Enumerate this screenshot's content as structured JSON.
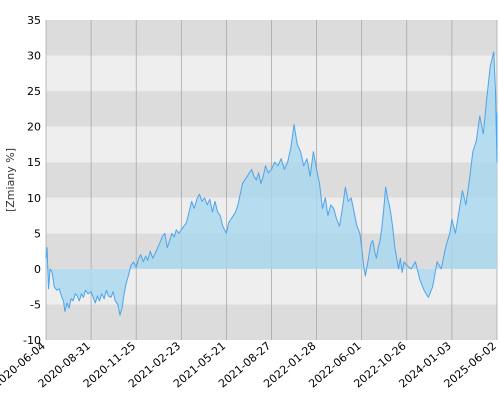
{
  "chart_data": {
    "type": "area",
    "title": "",
    "xlabel": "",
    "ylabel": "[Zmiany %]",
    "ylim": [
      -10,
      35
    ],
    "y_ticks": [
      "-10",
      "-5",
      "0",
      "5",
      "10",
      "15",
      "20",
      "25",
      "30",
      "35"
    ],
    "x_ticks": [
      "2020-06-04",
      "2020-08-31",
      "2020-11-25",
      "2021-02-23",
      "2021-05-21",
      "2021-08-27",
      "2022-01-28",
      "2022-06-01",
      "2022-10-26",
      "2024-01-03",
      "2025-06-02"
    ],
    "grid": true,
    "legend": "none",
    "colors": {
      "line": "#4da3ec",
      "fill": "#a8d8ef",
      "band_dark": "#dcdcdc",
      "band_light": "#eeeeee",
      "grid": "#a0a0a0"
    },
    "series": [
      {
        "points": [
          [
            "2020-06-04",
            1.5
          ],
          [
            "2020-06-06",
            3.0
          ],
          [
            "2020-06-09",
            -2.8
          ],
          [
            "2020-06-12",
            0.0
          ],
          [
            "2020-06-16",
            -0.5
          ],
          [
            "2020-06-20",
            -2.5
          ],
          [
            "2020-06-25",
            -3.0
          ],
          [
            "2020-06-30",
            -2.8
          ],
          [
            "2020-07-04",
            -3.8
          ],
          [
            "2020-07-08",
            -4.5
          ],
          [
            "2020-07-11",
            -6.0
          ],
          [
            "2020-07-15",
            -4.8
          ],
          [
            "2020-07-19",
            -5.5
          ],
          [
            "2020-07-23",
            -4.2
          ],
          [
            "2020-07-27",
            -4.5
          ],
          [
            "2020-07-31",
            -3.5
          ],
          [
            "2020-08-04",
            -3.8
          ],
          [
            "2020-08-08",
            -4.5
          ],
          [
            "2020-08-12",
            -3.5
          ],
          [
            "2020-08-16",
            -4.0
          ],
          [
            "2020-08-20",
            -3.0
          ],
          [
            "2020-08-25",
            -3.5
          ],
          [
            "2020-08-31",
            -3.2
          ],
          [
            "2020-09-04",
            -4.0
          ],
          [
            "2020-09-08",
            -4.8
          ],
          [
            "2020-09-12",
            -3.8
          ],
          [
            "2020-09-16",
            -4.5
          ],
          [
            "2020-09-20",
            -3.5
          ],
          [
            "2020-09-25",
            -4.2
          ],
          [
            "2020-09-29",
            -3.0
          ],
          [
            "2020-10-03",
            -3.8
          ],
          [
            "2020-10-08",
            -4.0
          ],
          [
            "2020-10-12",
            -3.2
          ],
          [
            "2020-10-16",
            -4.5
          ],
          [
            "2020-10-21",
            -5.0
          ],
          [
            "2020-10-25",
            -6.5
          ],
          [
            "2020-10-29",
            -5.5
          ],
          [
            "2020-11-02",
            -3.5
          ],
          [
            "2020-11-06",
            -2.0
          ],
          [
            "2020-11-10",
            -1.0
          ],
          [
            "2020-11-15",
            0.5
          ],
          [
            "2020-11-20",
            1.0
          ],
          [
            "2020-11-25",
            0.2
          ],
          [
            "2020-11-30",
            1.5
          ],
          [
            "2020-12-04",
            2.0
          ],
          [
            "2020-12-09",
            1.0
          ],
          [
            "2020-12-14",
            1.8
          ],
          [
            "2020-12-18",
            1.2
          ],
          [
            "2020-12-23",
            2.5
          ],
          [
            "2020-12-28",
            1.5
          ],
          [
            "2021-01-02",
            2.2
          ],
          [
            "2021-01-07",
            3.0
          ],
          [
            "2021-01-12",
            3.8
          ],
          [
            "2021-01-16",
            4.5
          ],
          [
            "2021-01-21",
            5.0
          ],
          [
            "2021-01-26",
            3.0
          ],
          [
            "2021-01-31",
            4.0
          ],
          [
            "2021-02-04",
            5.0
          ],
          [
            "2021-02-09",
            4.5
          ],
          [
            "2021-02-13",
            5.5
          ],
          [
            "2021-02-18",
            5.0
          ],
          [
            "2021-02-23",
            5.5
          ],
          [
            "2021-02-28",
            6.0
          ],
          [
            "2021-03-05",
            6.5
          ],
          [
            "2021-03-10",
            8.0
          ],
          [
            "2021-03-15",
            9.5
          ],
          [
            "2021-03-20",
            8.5
          ],
          [
            "2021-03-25",
            9.8
          ],
          [
            "2021-03-30",
            10.5
          ],
          [
            "2021-04-04",
            9.5
          ],
          [
            "2021-04-09",
            10.0
          ],
          [
            "2021-04-14",
            9.0
          ],
          [
            "2021-04-19",
            9.8
          ],
          [
            "2021-04-24",
            8.0
          ],
          [
            "2021-04-29",
            9.5
          ],
          [
            "2021-05-04",
            8.0
          ],
          [
            "2021-05-09",
            7.5
          ],
          [
            "2021-05-14",
            6.0
          ],
          [
            "2021-05-21",
            5.0
          ],
          [
            "2021-05-26",
            6.5
          ],
          [
            "2021-05-31",
            7.0
          ],
          [
            "2021-06-05",
            7.5
          ],
          [
            "2021-06-10",
            8.0
          ],
          [
            "2021-06-15",
            9.0
          ],
          [
            "2021-06-20",
            10.5
          ],
          [
            "2021-06-25",
            12.0
          ],
          [
            "2021-06-30",
            12.5
          ],
          [
            "2021-07-05",
            13.0
          ],
          [
            "2021-07-10",
            13.5
          ],
          [
            "2021-07-15",
            14.0
          ],
          [
            "2021-07-20",
            13.0
          ],
          [
            "2021-07-25",
            12.5
          ],
          [
            "2021-07-30",
            13.5
          ],
          [
            "2021-08-04",
            12.0
          ],
          [
            "2021-08-09",
            13.0
          ],
          [
            "2021-08-14",
            14.5
          ],
          [
            "2021-08-20",
            13.5
          ],
          [
            "2021-08-27",
            14.0
          ],
          [
            "2021-09-07",
            15.0
          ],
          [
            "2021-09-18",
            14.5
          ],
          [
            "2021-09-29",
            15.5
          ],
          [
            "2021-10-10",
            14.0
          ],
          [
            "2021-10-21",
            15.0
          ],
          [
            "2021-11-01",
            17.0
          ],
          [
            "2021-11-12",
            20.3
          ],
          [
            "2021-11-23",
            17.5
          ],
          [
            "2021-12-04",
            16.5
          ],
          [
            "2021-12-15",
            14.5
          ],
          [
            "2021-12-26",
            15.5
          ],
          [
            "2022-01-06",
            13.0
          ],
          [
            "2022-01-17",
            16.5
          ],
          [
            "2022-01-28",
            14.0
          ],
          [
            "2022-02-05",
            12.0
          ],
          [
            "2022-02-13",
            8.5
          ],
          [
            "2022-02-21",
            10.0
          ],
          [
            "2022-02-28",
            7.5
          ],
          [
            "2022-03-08",
            9.0
          ],
          [
            "2022-03-16",
            8.5
          ],
          [
            "2022-03-24",
            7.0
          ],
          [
            "2022-04-01",
            6.0
          ],
          [
            "2022-04-09",
            8.5
          ],
          [
            "2022-04-17",
            11.5
          ],
          [
            "2022-04-25",
            9.5
          ],
          [
            "2022-05-03",
            10.0
          ],
          [
            "2022-05-11",
            8.0
          ],
          [
            "2022-05-19",
            6.0
          ],
          [
            "2022-05-27",
            5.0
          ],
          [
            "2022-06-01",
            3.0
          ],
          [
            "2022-06-07",
            0.5
          ],
          [
            "2022-06-13",
            -1.0
          ],
          [
            "2022-06-19",
            0.5
          ],
          [
            "2022-06-25",
            2.0
          ],
          [
            "2022-07-01",
            3.5
          ],
          [
            "2022-07-07",
            4.0
          ],
          [
            "2022-07-13",
            2.5
          ],
          [
            "2022-07-19",
            1.5
          ],
          [
            "2022-07-25",
            3.0
          ],
          [
            "2022-07-31",
            4.0
          ],
          [
            "2022-08-06",
            6.0
          ],
          [
            "2022-08-12",
            8.5
          ],
          [
            "2022-08-18",
            11.5
          ],
          [
            "2022-08-24",
            10.0
          ],
          [
            "2022-08-30",
            9.0
          ],
          [
            "2022-09-05",
            7.5
          ],
          [
            "2022-09-11",
            5.5
          ],
          [
            "2022-09-17",
            3.0
          ],
          [
            "2022-09-23",
            1.5
          ],
          [
            "2022-09-29",
            0.0
          ],
          [
            "2022-10-05",
            1.5
          ],
          [
            "2022-10-11",
            -0.5
          ],
          [
            "2022-10-17",
            1.0
          ],
          [
            "2022-10-26",
            0.5
          ],
          [
            "2022-12-07",
            0.0
          ],
          [
            "2023-01-17",
            1.0
          ],
          [
            "2023-02-28",
            -1.5
          ],
          [
            "2023-04-10",
            -3.0
          ],
          [
            "2023-05-22",
            -4.0
          ],
          [
            "2023-07-02",
            -2.5
          ],
          [
            "2023-08-13",
            1.0
          ],
          [
            "2023-09-23",
            0.0
          ],
          [
            "2023-11-03",
            3.0
          ],
          [
            "2023-12-14",
            5.0
          ],
          [
            "2024-01-03",
            7.0
          ],
          [
            "2024-02-12",
            5.0
          ],
          [
            "2024-03-23",
            8.0
          ],
          [
            "2024-05-02",
            11.0
          ],
          [
            "2024-06-11",
            9.0
          ],
          [
            "2024-07-21",
            12.5
          ],
          [
            "2024-08-30",
            16.5
          ],
          [
            "2024-10-08",
            18.0
          ],
          [
            "2024-11-17",
            21.5
          ],
          [
            "2024-12-27",
            19.0
          ],
          [
            "2025-02-05",
            24.0
          ],
          [
            "2025-03-17",
            28.5
          ],
          [
            "2025-04-26",
            30.5
          ],
          [
            "2025-05-16",
            25.0
          ],
          [
            "2025-05-24",
            20.0
          ],
          [
            "2025-06-02",
            15.0
          ],
          [
            "2025-06-06",
            22.0
          ]
        ]
      }
    ]
  }
}
